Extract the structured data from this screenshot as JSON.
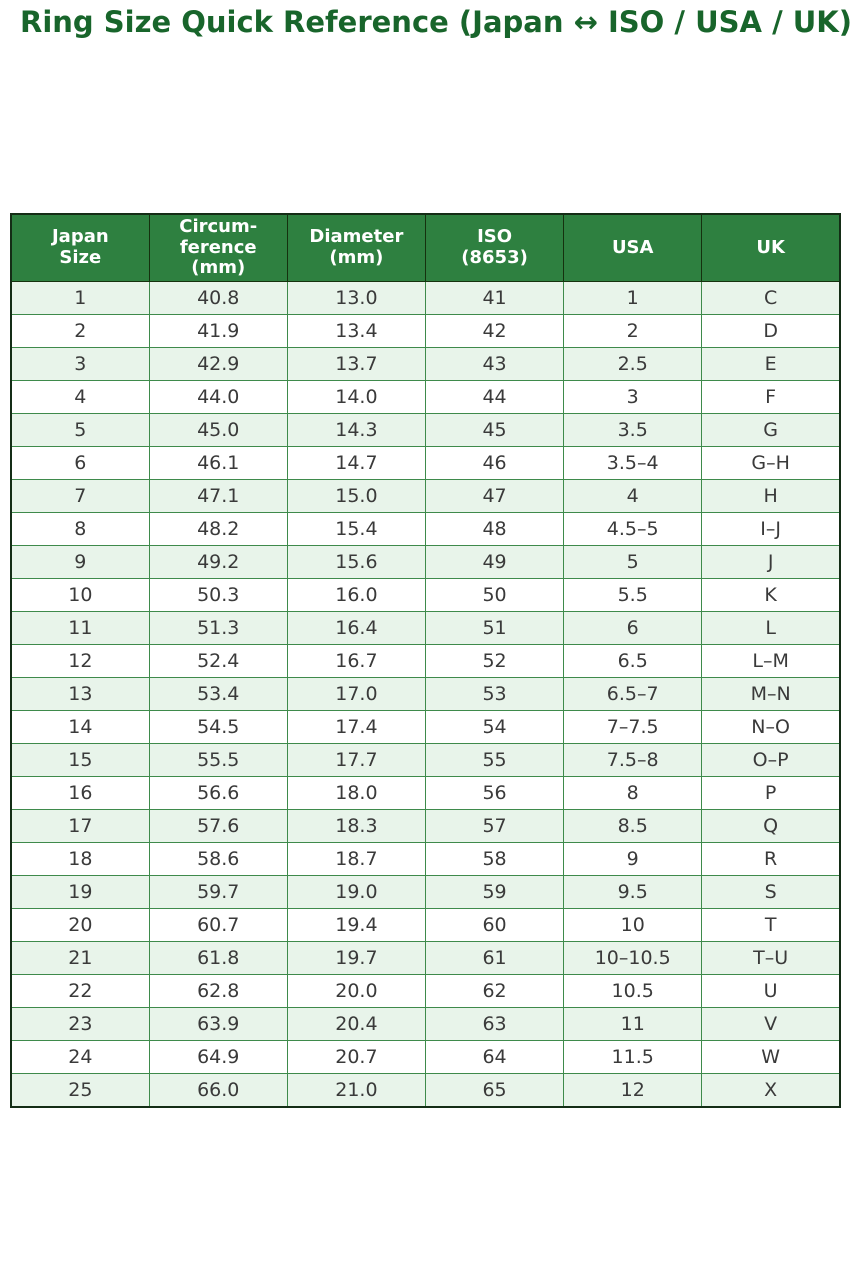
{
  "colors": {
    "title_text": "#18652b",
    "header_bg": "#2e8040",
    "header_text": "#ffffff",
    "row_alt_bg": "#e8f4ea",
    "row_bg": "#ffffff",
    "grid_border": "#3e8a4b",
    "outer_border": "#142d16",
    "body_text": "#3a3a3a"
  },
  "chart_data": {
    "type": "table",
    "title": "Ring Size Quick Reference (Japan ↔ ISO / USA / UK)",
    "legend_position": "none",
    "grid": true,
    "columns": [
      "Japan\nSize",
      "Circum-\nference\n(mm)",
      "Diameter\n(mm)",
      "ISO\n(8653)",
      "USA",
      "UK"
    ],
    "rows": [
      [
        "1",
        "40.8",
        "13.0",
        "41",
        "1",
        "C"
      ],
      [
        "2",
        "41.9",
        "13.4",
        "42",
        "2",
        "D"
      ],
      [
        "3",
        "42.9",
        "13.7",
        "43",
        "2.5",
        "E"
      ],
      [
        "4",
        "44.0",
        "14.0",
        "44",
        "3",
        "F"
      ],
      [
        "5",
        "45.0",
        "14.3",
        "45",
        "3.5",
        "G"
      ],
      [
        "6",
        "46.1",
        "14.7",
        "46",
        "3.5–4",
        "G–H"
      ],
      [
        "7",
        "47.1",
        "15.0",
        "47",
        "4",
        "H"
      ],
      [
        "8",
        "48.2",
        "15.4",
        "48",
        "4.5–5",
        "I–J"
      ],
      [
        "9",
        "49.2",
        "15.6",
        "49",
        "5",
        "J"
      ],
      [
        "10",
        "50.3",
        "16.0",
        "50",
        "5.5",
        "K"
      ],
      [
        "11",
        "51.3",
        "16.4",
        "51",
        "6",
        "L"
      ],
      [
        "12",
        "52.4",
        "16.7",
        "52",
        "6.5",
        "L–M"
      ],
      [
        "13",
        "53.4",
        "17.0",
        "53",
        "6.5–7",
        "M–N"
      ],
      [
        "14",
        "54.5",
        "17.4",
        "54",
        "7–7.5",
        "N–O"
      ],
      [
        "15",
        "55.5",
        "17.7",
        "55",
        "7.5–8",
        "O–P"
      ],
      [
        "16",
        "56.6",
        "18.0",
        "56",
        "8",
        "P"
      ],
      [
        "17",
        "57.6",
        "18.3",
        "57",
        "8.5",
        "Q"
      ],
      [
        "18",
        "58.6",
        "18.7",
        "58",
        "9",
        "R"
      ],
      [
        "19",
        "59.7",
        "19.0",
        "59",
        "9.5",
        "S"
      ],
      [
        "20",
        "60.7",
        "19.4",
        "60",
        "10",
        "T"
      ],
      [
        "21",
        "61.8",
        "19.7",
        "61",
        "10–10.5",
        "T–U"
      ],
      [
        "22",
        "62.8",
        "20.0",
        "62",
        "10.5",
        "U"
      ],
      [
        "23",
        "63.9",
        "20.4",
        "63",
        "11",
        "V"
      ],
      [
        "24",
        "64.9",
        "20.7",
        "64",
        "11.5",
        "W"
      ],
      [
        "25",
        "66.0",
        "21.0",
        "65",
        "12",
        "X"
      ]
    ]
  }
}
